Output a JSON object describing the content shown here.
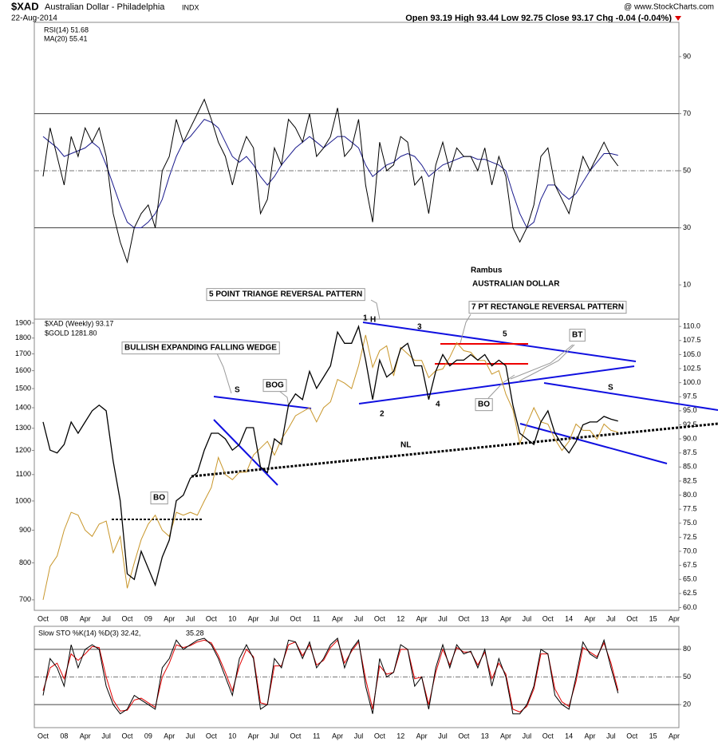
{
  "header": {
    "symbol": "$XAD",
    "name": "Australian Dollar - Philadelphia",
    "exchange": "INDX",
    "date": "22-Aug-2014",
    "source": "@ www.StockCharts.com",
    "quote": "Open 93.19 High 93.44 Low 92.75 Close 93.17 Chg -0.04 (-0.04%)"
  },
  "chart_data": [
    {
      "type": "line",
      "ylim": [
        -2,
        102
      ],
      "yticks": [
        10,
        30,
        50,
        70,
        90
      ],
      "reference_lines": [
        {
          "value": 30,
          "style": "solid"
        },
        {
          "value": 50,
          "style": "dashdot"
        },
        {
          "value": 70,
          "style": "solid"
        }
      ],
      "series": [
        {
          "name": "RSI(14) 51.68",
          "color": "#000000",
          "values": [
            48,
            65,
            55,
            45,
            62,
            55,
            65,
            60,
            65,
            55,
            35,
            25,
            18,
            30,
            35,
            38,
            30,
            50,
            55,
            68,
            60,
            65,
            70,
            75,
            68,
            60,
            55,
            45,
            55,
            62,
            58,
            35,
            40,
            58,
            52,
            68,
            65,
            60,
            70,
            55,
            58,
            62,
            72,
            55,
            58,
            68,
            45,
            32,
            60,
            50,
            52,
            62,
            60,
            45,
            48,
            35,
            52,
            60,
            50,
            58,
            55,
            55,
            50,
            58,
            45,
            55,
            48,
            30,
            25,
            30,
            38,
            55,
            58,
            45,
            40,
            35,
            45,
            55,
            50,
            55,
            60,
            55,
            51.68
          ]
        },
        {
          "name": "MA(20) 55.41",
          "color": "#1a1a8c",
          "values": [
            62,
            60,
            58,
            55,
            56,
            57,
            58,
            60,
            58,
            52,
            45,
            38,
            32,
            30,
            30,
            32,
            35,
            40,
            48,
            55,
            60,
            62,
            65,
            68,
            67,
            65,
            60,
            55,
            53,
            55,
            52,
            48,
            45,
            48,
            52,
            55,
            58,
            60,
            62,
            60,
            58,
            60,
            62,
            62,
            60,
            58,
            52,
            48,
            50,
            52,
            53,
            55,
            56,
            55,
            52,
            48,
            50,
            52,
            53,
            54,
            55,
            55,
            54,
            54,
            53,
            52,
            50,
            42,
            35,
            30,
            32,
            40,
            45,
            45,
            42,
            40,
            42,
            46,
            50,
            53,
            56,
            56,
            55.41
          ]
        }
      ]
    },
    {
      "type": "line",
      "ylim": [
        59.5,
        111.3
      ],
      "y2lim": [
        674,
        1927
      ],
      "y2log": true,
      "yticks": [
        {
          "value": 60,
          "label": "60.0"
        },
        {
          "value": 62.5,
          "label": "62.5"
        },
        {
          "value": 65,
          "label": "65.0"
        },
        {
          "value": 67.5,
          "label": "67.5"
        },
        {
          "value": 70,
          "label": "70.0"
        },
        {
          "value": 72.5,
          "label": "72.5"
        },
        {
          "value": 75,
          "label": "75.0"
        },
        {
          "value": 77.5,
          "label": "77.5"
        },
        {
          "value": 80,
          "label": "80.0"
        },
        {
          "value": 82.5,
          "label": "82.5"
        },
        {
          "value": 85,
          "label": "85.0"
        },
        {
          "value": 87.5,
          "label": "87.5"
        },
        {
          "value": 90,
          "label": "90.0"
        },
        {
          "value": 92.5,
          "label": "92.5"
        },
        {
          "value": 95,
          "label": "95.0"
        },
        {
          "value": 97.5,
          "label": "97.5"
        },
        {
          "value": 100,
          "label": "100.0"
        },
        {
          "value": 102.5,
          "label": "102.5"
        },
        {
          "value": 105,
          "label": "105.0"
        },
        {
          "value": 107.5,
          "label": "107.5"
        },
        {
          "value": 110,
          "label": "110.0"
        }
      ],
      "y2ticks": [
        700,
        800,
        900,
        1000,
        1100,
        1200,
        1300,
        1400,
        1500,
        1600,
        1700,
        1800,
        1900
      ],
      "x_labels": [
        "Oct",
        "08",
        "Apr",
        "Jul",
        "Oct",
        "09",
        "Apr",
        "Jul",
        "Oct",
        "10",
        "Apr",
        "Jul",
        "Oct",
        "11",
        "Apr",
        "Jul",
        "Oct",
        "12",
        "Apr",
        "Jul",
        "Oct",
        "13",
        "Apr",
        "Jul",
        "Oct",
        "14",
        "Apr",
        "Jul",
        "Oct",
        "15",
        "Apr"
      ],
      "annotations": [
        "Rambus",
        "AUSTRALIAN DOLLAR",
        "5 POINT TRIANGE REVERSAL PATTERN",
        "7 PT RECTANGLE REVERSAL PATTERN",
        "BULLISH EXPANDING FALLING WEDGE",
        "S",
        "H",
        "S",
        "NL",
        "BOG",
        "BO",
        "BO",
        "BT",
        "1",
        "2",
        "3",
        "4",
        "5"
      ],
      "series": [
        {
          "name": "$XAD (Weekly) 93.17",
          "color": "#000000",
          "axis": "y",
          "values": [
            93,
            88,
            87.5,
            89,
            93,
            91,
            93,
            95,
            96,
            95,
            86,
            79,
            66,
            65,
            70,
            67,
            64,
            69,
            72,
            79,
            80,
            83,
            84,
            88,
            91,
            91,
            90,
            88,
            89,
            92,
            92,
            85,
            84,
            90,
            89,
            96,
            98,
            97,
            102,
            99,
            101,
            103,
            109,
            107,
            107,
            110,
            104,
            97,
            104,
            101,
            102,
            106,
            107,
            103,
            103,
            97,
            102,
            105,
            103,
            104,
            104,
            105,
            104,
            105,
            103,
            104,
            103,
            96,
            91,
            90,
            89,
            93,
            95,
            91,
            89,
            87.5,
            89.5,
            92.5,
            93,
            93,
            94,
            93.5,
            93.17
          ]
        },
        {
          "name": "$GOLD 1281.80",
          "color": "#c8962a",
          "axis": "y2",
          "values": [
            700,
            790,
            820,
            900,
            960,
            950,
            900,
            880,
            920,
            930,
            830,
            880,
            730,
            800,
            870,
            920,
            950,
            900,
            880,
            960,
            950,
            960,
            950,
            1000,
            1050,
            1170,
            1100,
            1080,
            1110,
            1110,
            1180,
            1210,
            1240,
            1180,
            1250,
            1300,
            1360,
            1380,
            1400,
            1330,
            1400,
            1430,
            1550,
            1530,
            1500,
            1630,
            1820,
            1620,
            1720,
            1750,
            1570,
            1740,
            1700,
            1660,
            1660,
            1560,
            1600,
            1610,
            1680,
            1770,
            1720,
            1710,
            1660,
            1660,
            1580,
            1600,
            1470,
            1390,
            1230,
            1320,
            1400,
            1330,
            1320,
            1250,
            1200,
            1240,
            1320,
            1290,
            1290,
            1250,
            1320,
            1290,
            1281.8
          ]
        }
      ]
    },
    {
      "type": "line",
      "ylim": [
        -5,
        105
      ],
      "yticks": [
        20,
        50,
        80
      ],
      "reference_lines": [
        {
          "value": 20,
          "style": "solid"
        },
        {
          "value": 50,
          "style": "dashdot"
        },
        {
          "value": 80,
          "style": "solid"
        }
      ],
      "x_labels": [
        "Oct",
        "08",
        "Apr",
        "Jul",
        "Oct",
        "09",
        "Apr",
        "Jul",
        "Oct",
        "10",
        "Apr",
        "Jul",
        "Oct",
        "11",
        "Apr",
        "Jul",
        "Oct",
        "12",
        "Apr",
        "Jul",
        "Oct",
        "13",
        "Apr",
        "Jul",
        "Oct",
        "14",
        "Apr",
        "Jul",
        "Oct",
        "15",
        "Apr"
      ],
      "series": [
        {
          "name": "Slow STO %K(14) %D(3) 32.42,",
          "color": "#000000",
          "values": [
            30,
            70,
            60,
            40,
            85,
            60,
            80,
            85,
            80,
            40,
            20,
            10,
            15,
            30,
            25,
            20,
            15,
            60,
            70,
            90,
            80,
            85,
            90,
            92,
            85,
            70,
            50,
            30,
            70,
            85,
            70,
            15,
            20,
            70,
            60,
            90,
            88,
            70,
            88,
            60,
            70,
            85,
            92,
            60,
            80,
            90,
            40,
            10,
            70,
            50,
            55,
            85,
            80,
            40,
            50,
            15,
            60,
            85,
            60,
            85,
            75,
            78,
            60,
            80,
            40,
            70,
            50,
            10,
            10,
            20,
            40,
            80,
            75,
            30,
            20,
            15,
            50,
            88,
            75,
            70,
            90,
            60,
            32.42
          ]
        },
        {
          "name": "35.28",
          "color": "#e00000",
          "values": [
            35,
            60,
            65,
            48,
            75,
            68,
            75,
            83,
            82,
            50,
            25,
            13,
            14,
            25,
            27,
            22,
            17,
            50,
            65,
            85,
            82,
            84,
            88,
            90,
            87,
            73,
            55,
            35,
            62,
            80,
            72,
            22,
            20,
            62,
            62,
            85,
            88,
            73,
            85,
            63,
            68,
            82,
            90,
            65,
            78,
            88,
            48,
            15,
            62,
            53,
            55,
            80,
            80,
            48,
            50,
            20,
            55,
            80,
            63,
            82,
            77,
            77,
            63,
            77,
            48,
            65,
            53,
            15,
            12,
            18,
            37,
            75,
            75,
            37,
            23,
            18,
            45,
            82,
            77,
            72,
            87,
            65,
            35.28
          ]
        }
      ]
    }
  ]
}
